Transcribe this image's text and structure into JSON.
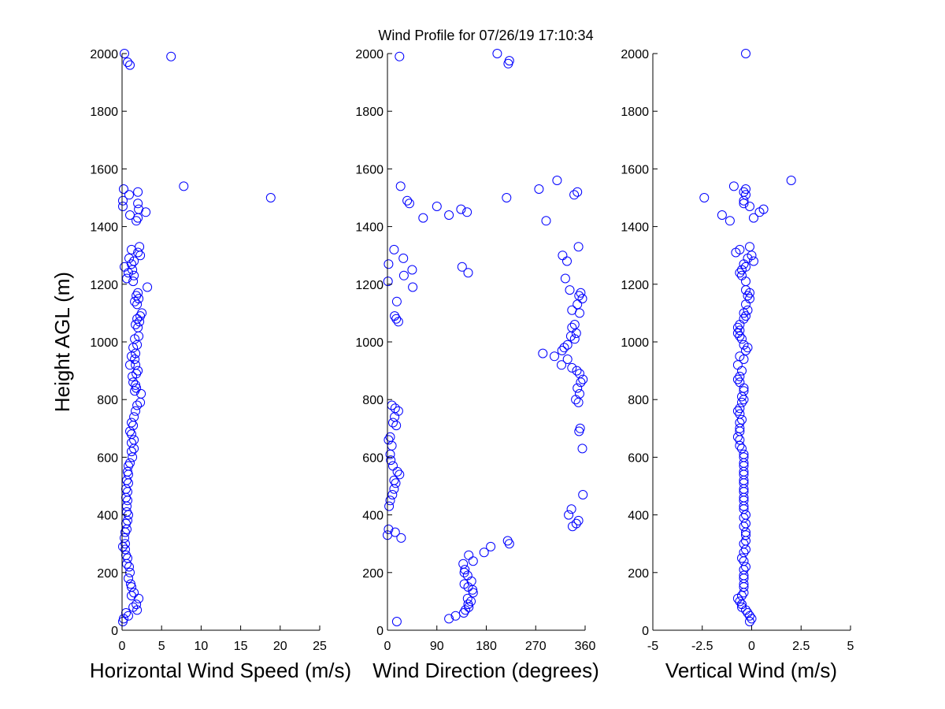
{
  "title": "Wind Profile for  07/26/19 17:10:34",
  "colors": {
    "marker": "#0000ff",
    "axis": "#000000",
    "background": "#ffffff"
  },
  "chart_data": [
    {
      "type": "scatter",
      "id": "speed",
      "xlabel": "Horizontal Wind Speed (m/s)",
      "ylabel": "Height AGL (m)",
      "xlim": [
        0,
        25
      ],
      "ylim": [
        0,
        2000
      ],
      "xticks": [
        0,
        5,
        10,
        15,
        20,
        25
      ],
      "xtick_labels": [
        "0",
        "5",
        "10",
        "15",
        "20",
        "25"
      ],
      "yticks": [
        0,
        200,
        400,
        600,
        800,
        1000,
        1200,
        1400,
        1600,
        1800,
        2000
      ],
      "ytick_labels": [
        "0",
        "200",
        "400",
        "600",
        "800",
        "1000",
        "1200",
        "1400",
        "1600",
        "1800",
        "2000"
      ],
      "points": [
        [
          0.3,
          2000
        ],
        [
          6.2,
          1990
        ],
        [
          0.7,
          1970
        ],
        [
          1.0,
          1960
        ],
        [
          7.8,
          1540
        ],
        [
          0.2,
          1530
        ],
        [
          2.0,
          1520
        ],
        [
          0.9,
          1510
        ],
        [
          18.8,
          1500
        ],
        [
          0.1,
          1490
        ],
        [
          2.0,
          1480
        ],
        [
          0.1,
          1470
        ],
        [
          2.1,
          1460
        ],
        [
          3.0,
          1450
        ],
        [
          1.0,
          1440
        ],
        [
          2.0,
          1430
        ],
        [
          1.8,
          1420
        ],
        [
          2.2,
          1330
        ],
        [
          1.2,
          1320
        ],
        [
          2.0,
          1310
        ],
        [
          2.3,
          1300
        ],
        [
          0.9,
          1290
        ],
        [
          1.5,
          1280
        ],
        [
          1.2,
          1270
        ],
        [
          0.3,
          1260
        ],
        [
          1.3,
          1250
        ],
        [
          0.8,
          1240
        ],
        [
          1.5,
          1230
        ],
        [
          0.6,
          1220
        ],
        [
          1.4,
          1210
        ],
        [
          3.2,
          1190
        ],
        [
          2.0,
          1170
        ],
        [
          1.8,
          1160
        ],
        [
          2.1,
          1150
        ],
        [
          1.6,
          1140
        ],
        [
          1.9,
          1130
        ],
        [
          2.5,
          1100
        ],
        [
          2.3,
          1090
        ],
        [
          1.9,
          1080
        ],
        [
          2.2,
          1070
        ],
        [
          1.7,
          1060
        ],
        [
          2.0,
          1050
        ],
        [
          2.1,
          1020
        ],
        [
          1.6,
          1010
        ],
        [
          1.9,
          990
        ],
        [
          1.4,
          980
        ],
        [
          1.7,
          960
        ],
        [
          1.2,
          950
        ],
        [
          1.6,
          940
        ],
        [
          1.7,
          920
        ],
        [
          1.0,
          920
        ],
        [
          2.0,
          900
        ],
        [
          1.8,
          890
        ],
        [
          1.3,
          880
        ],
        [
          1.4,
          860
        ],
        [
          1.7,
          850
        ],
        [
          1.8,
          840
        ],
        [
          1.6,
          830
        ],
        [
          2.4,
          820
        ],
        [
          2.3,
          790
        ],
        [
          1.9,
          780
        ],
        [
          1.7,
          760
        ],
        [
          1.5,
          740
        ],
        [
          1.2,
          720
        ],
        [
          1.4,
          710
        ],
        [
          1.0,
          690
        ],
        [
          1.2,
          680
        ],
        [
          1.5,
          660
        ],
        [
          1.2,
          650
        ],
        [
          1.5,
          630
        ],
        [
          1.2,
          620
        ],
        [
          1.3,
          600
        ],
        [
          1.0,
          580
        ],
        [
          0.8,
          570
        ],
        [
          0.7,
          550
        ],
        [
          0.8,
          540
        ],
        [
          0.6,
          520
        ],
        [
          0.8,
          510
        ],
        [
          0.5,
          490
        ],
        [
          0.7,
          480
        ],
        [
          0.5,
          460
        ],
        [
          0.7,
          450
        ],
        [
          0.6,
          430
        ],
        [
          0.6,
          410
        ],
        [
          0.8,
          400
        ],
        [
          0.7,
          380
        ],
        [
          0.5,
          370
        ],
        [
          0.6,
          350
        ],
        [
          0.4,
          340
        ],
        [
          0.3,
          320
        ],
        [
          0.4,
          300
        ],
        [
          0.1,
          290
        ],
        [
          0.4,
          280
        ],
        [
          0.5,
          260
        ],
        [
          0.7,
          250
        ],
        [
          0.6,
          230
        ],
        [
          0.9,
          220
        ],
        [
          1.0,
          200
        ],
        [
          0.8,
          180
        ],
        [
          1.1,
          160
        ],
        [
          1.2,
          150
        ],
        [
          1.5,
          130
        ],
        [
          1.2,
          120
        ],
        [
          2.1,
          110
        ],
        [
          1.8,
          90
        ],
        [
          1.4,
          80
        ],
        [
          1.9,
          70
        ],
        [
          0.5,
          60
        ],
        [
          0.8,
          50
        ],
        [
          0.2,
          40
        ],
        [
          0.1,
          30
        ]
      ]
    },
    {
      "type": "scatter",
      "id": "direction",
      "xlabel": "Wind Direction (degrees)",
      "ylabel": "",
      "xlim": [
        0,
        360
      ],
      "ylim": [
        0,
        2000
      ],
      "xticks": [
        0,
        90,
        180,
        270,
        360
      ],
      "xtick_labels": [
        "0",
        "90",
        "180",
        "270",
        "360"
      ],
      "yticks": [
        0,
        200,
        400,
        600,
        800,
        1000,
        1200,
        1400,
        1600,
        1800,
        2000
      ],
      "ytick_labels": [
        "0",
        "200",
        "400",
        "600",
        "800",
        "1000",
        "1200",
        "1400",
        "1600",
        "1800",
        "2000"
      ],
      "points": [
        [
          200,
          2000
        ],
        [
          22,
          1990
        ],
        [
          222,
          1975
        ],
        [
          220,
          1965
        ],
        [
          24,
          1540
        ],
        [
          309,
          1560
        ],
        [
          276,
          1530
        ],
        [
          346,
          1520
        ],
        [
          340,
          1510
        ],
        [
          217,
          1500
        ],
        [
          36,
          1490
        ],
        [
          40,
          1480
        ],
        [
          90,
          1470
        ],
        [
          134,
          1460
        ],
        [
          145,
          1450
        ],
        [
          112,
          1440
        ],
        [
          65,
          1430
        ],
        [
          289,
          1420
        ],
        [
          348,
          1330
        ],
        [
          12,
          1320
        ],
        [
          319,
          1300
        ],
        [
          29,
          1290
        ],
        [
          327,
          1280
        ],
        [
          2,
          1270
        ],
        [
          136,
          1260
        ],
        [
          45,
          1250
        ],
        [
          147,
          1240
        ],
        [
          30,
          1230
        ],
        [
          324,
          1220
        ],
        [
          1,
          1210
        ],
        [
          46,
          1190
        ],
        [
          332,
          1180
        ],
        [
          352,
          1170
        ],
        [
          355,
          1150
        ],
        [
          349,
          1160
        ],
        [
          17,
          1140
        ],
        [
          346,
          1130
        ],
        [
          350,
          1100
        ],
        [
          336,
          1110
        ],
        [
          13,
          1090
        ],
        [
          16,
          1080
        ],
        [
          20,
          1070
        ],
        [
          341,
          1060
        ],
        [
          344,
          1030
        ],
        [
          336,
          1050
        ],
        [
          334,
          1020
        ],
        [
          341,
          1010
        ],
        [
          328,
          990
        ],
        [
          322,
          980
        ],
        [
          318,
          970
        ],
        [
          283,
          960
        ],
        [
          304,
          950
        ],
        [
          328,
          940
        ],
        [
          317,
          920
        ],
        [
          336,
          910
        ],
        [
          345,
          900
        ],
        [
          350,
          890
        ],
        [
          356,
          870
        ],
        [
          352,
          860
        ],
        [
          346,
          840
        ],
        [
          350,
          820
        ],
        [
          343,
          800
        ],
        [
          348,
          790
        ],
        [
          8,
          780
        ],
        [
          14,
          770
        ],
        [
          20,
          760
        ],
        [
          13,
          740
        ],
        [
          10,
          720
        ],
        [
          16,
          710
        ],
        [
          351,
          700
        ],
        [
          349,
          690
        ],
        [
          5,
          670
        ],
        [
          2,
          660
        ],
        [
          8,
          640
        ],
        [
          355,
          630
        ],
        [
          5,
          610
        ],
        [
          6,
          590
        ],
        [
          10,
          570
        ],
        [
          18,
          550
        ],
        [
          22,
          540
        ],
        [
          12,
          520
        ],
        [
          15,
          510
        ],
        [
          12,
          490
        ],
        [
          9,
          470
        ],
        [
          356,
          470
        ],
        [
          5,
          450
        ],
        [
          3,
          430
        ],
        [
          335,
          420
        ],
        [
          330,
          400
        ],
        [
          348,
          380
        ],
        [
          344,
          370
        ],
        [
          337,
          360
        ],
        [
          2,
          350
        ],
        [
          14,
          340
        ],
        [
          0,
          330
        ],
        [
          25,
          320
        ],
        [
          219,
          310
        ],
        [
          222,
          300
        ],
        [
          188,
          290
        ],
        [
          176,
          270
        ],
        [
          148,
          260
        ],
        [
          156,
          240
        ],
        [
          138,
          230
        ],
        [
          141,
          210
        ],
        [
          140,
          200
        ],
        [
          146,
          190
        ],
        [
          153,
          170
        ],
        [
          140,
          160
        ],
        [
          147,
          150
        ],
        [
          155,
          140
        ],
        [
          156,
          130
        ],
        [
          146,
          110
        ],
        [
          152,
          100
        ],
        [
          147,
          90
        ],
        [
          148,
          80
        ],
        [
          142,
          70
        ],
        [
          139,
          60
        ],
        [
          124,
          50
        ],
        [
          112,
          40
        ],
        [
          17,
          30
        ]
      ]
    },
    {
      "type": "scatter",
      "id": "vertical",
      "xlabel": "Vertical Wind (m/s)",
      "ylabel": "",
      "xlim": [
        -5,
        5
      ],
      "ylim": [
        0,
        2000
      ],
      "xticks": [
        -5,
        -2.5,
        0,
        2.5,
        5
      ],
      "xtick_labels": [
        "-5",
        "-2.5",
        "0",
        "2.5",
        "5"
      ],
      "yticks": [
        0,
        200,
        400,
        600,
        800,
        1000,
        1200,
        1400,
        1600,
        1800,
        2000
      ],
      "ytick_labels": [
        "0",
        "200",
        "400",
        "600",
        "800",
        "1000",
        "1200",
        "1400",
        "1600",
        "1800",
        "2000"
      ],
      "points": [
        [
          -0.3,
          2000
        ],
        [
          2.0,
          1560
        ],
        [
          -0.9,
          1540
        ],
        [
          -0.3,
          1530
        ],
        [
          -0.4,
          1520
        ],
        [
          -0.3,
          1510
        ],
        [
          -2.4,
          1500
        ],
        [
          -0.4,
          1490
        ],
        [
          -0.4,
          1480
        ],
        [
          -0.1,
          1470
        ],
        [
          0.6,
          1460
        ],
        [
          0.4,
          1450
        ],
        [
          -1.5,
          1440
        ],
        [
          0.1,
          1430
        ],
        [
          -1.1,
          1420
        ],
        [
          -0.1,
          1330
        ],
        [
          -0.6,
          1320
        ],
        [
          -0.8,
          1310
        ],
        [
          0.0,
          1300
        ],
        [
          -0.2,
          1290
        ],
        [
          0.1,
          1280
        ],
        [
          -0.4,
          1270
        ],
        [
          -0.3,
          1260
        ],
        [
          -0.5,
          1250
        ],
        [
          -0.6,
          1240
        ],
        [
          -0.5,
          1230
        ],
        [
          -0.3,
          1210
        ],
        [
          -0.3,
          1180
        ],
        [
          -0.1,
          1170
        ],
        [
          -0.2,
          1160
        ],
        [
          -0.1,
          1150
        ],
        [
          -0.3,
          1130
        ],
        [
          -0.2,
          1110
        ],
        [
          -0.4,
          1100
        ],
        [
          -0.3,
          1090
        ],
        [
          -0.4,
          1080
        ],
        [
          -0.6,
          1060
        ],
        [
          -0.7,
          1050
        ],
        [
          -0.6,
          1040
        ],
        [
          -0.7,
          1030
        ],
        [
          -0.6,
          1020
        ],
        [
          -0.5,
          1010
        ],
        [
          -0.4,
          990
        ],
        [
          -0.2,
          980
        ],
        [
          -0.3,
          970
        ],
        [
          -0.6,
          950
        ],
        [
          -0.4,
          940
        ],
        [
          -0.7,
          920
        ],
        [
          -0.5,
          900
        ],
        [
          -0.6,
          880
        ],
        [
          -0.7,
          870
        ],
        [
          -0.6,
          860
        ],
        [
          -0.4,
          840
        ],
        [
          -0.4,
          830
        ],
        [
          -0.5,
          810
        ],
        [
          -0.4,
          800
        ],
        [
          -0.5,
          790
        ],
        [
          -0.6,
          770
        ],
        [
          -0.7,
          760
        ],
        [
          -0.6,
          750
        ],
        [
          -0.5,
          730
        ],
        [
          -0.6,
          720
        ],
        [
          -0.6,
          700
        ],
        [
          -0.6,
          690
        ],
        [
          -0.7,
          670
        ],
        [
          -0.6,
          660
        ],
        [
          -0.6,
          640
        ],
        [
          -0.5,
          630
        ],
        [
          -0.4,
          610
        ],
        [
          -0.4,
          600
        ],
        [
          -0.4,
          580
        ],
        [
          -0.4,
          570
        ],
        [
          -0.4,
          550
        ],
        [
          -0.4,
          540
        ],
        [
          -0.4,
          520
        ],
        [
          -0.4,
          510
        ],
        [
          -0.4,
          490
        ],
        [
          -0.4,
          480
        ],
        [
          -0.4,
          460
        ],
        [
          -0.4,
          450
        ],
        [
          -0.4,
          430
        ],
        [
          -0.4,
          420
        ],
        [
          -0.3,
          400
        ],
        [
          -0.4,
          390
        ],
        [
          -0.3,
          370
        ],
        [
          -0.4,
          360
        ],
        [
          -0.3,
          340
        ],
        [
          -0.3,
          330
        ],
        [
          -0.3,
          310
        ],
        [
          -0.4,
          300
        ],
        [
          -0.3,
          280
        ],
        [
          -0.4,
          270
        ],
        [
          -0.5,
          250
        ],
        [
          -0.4,
          240
        ],
        [
          -0.3,
          220
        ],
        [
          -0.4,
          210
        ],
        [
          -0.4,
          190
        ],
        [
          -0.4,
          180
        ],
        [
          -0.4,
          160
        ],
        [
          -0.4,
          150
        ],
        [
          -0.4,
          130
        ],
        [
          -0.5,
          120
        ],
        [
          -0.7,
          110
        ],
        [
          -0.6,
          100
        ],
        [
          -0.5,
          90
        ],
        [
          -0.5,
          80
        ],
        [
          -0.3,
          70
        ],
        [
          -0.2,
          60
        ],
        [
          -0.1,
          50
        ],
        [
          0.0,
          40
        ],
        [
          -0.1,
          30
        ]
      ]
    }
  ]
}
